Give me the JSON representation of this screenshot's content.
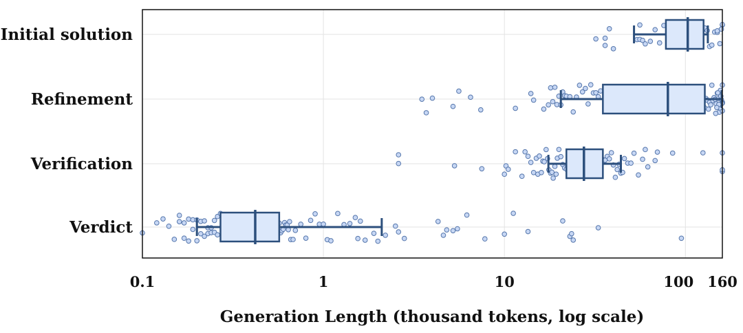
{
  "chart_data": {
    "type": "box",
    "orientation": "horizontal",
    "xlabel": "Generation Length (thousand tokens, log scale)",
    "xscale": "log",
    "xlim": [
      0.1,
      160
    ],
    "xticks": [
      0.1,
      1,
      10,
      100,
      160
    ],
    "xtick_labels": [
      "0.1",
      "1",
      "10",
      "100",
      "160"
    ],
    "grid": true,
    "colors": {
      "box_fill": "#dce8fb",
      "box_edge": "#2c4f7c",
      "point_fill": "#c7d7f4",
      "point_edge": "#5576ab",
      "grid": "#e3e3e3"
    },
    "categories": [
      "Initial solution",
      "Refinement",
      "Verification",
      "Verdict"
    ],
    "boxes": [
      {
        "name": "Initial solution",
        "whisker_low": 52,
        "q1": 78,
        "median": 103,
        "q3": 126,
        "whisker_high": 133
      },
      {
        "name": "Refinement",
        "whisker_low": 20.5,
        "q1": 35,
        "median": 80,
        "q3": 128,
        "whisker_high": 160
      },
      {
        "name": "Verification",
        "whisker_low": 17.5,
        "q1": 22,
        "median": 27.5,
        "q3": 35,
        "whisker_high": 44
      },
      {
        "name": "Verdict",
        "whisker_low": 0.2,
        "q1": 0.27,
        "median": 0.42,
        "q3": 0.57,
        "whisker_high": 2.1
      }
    ],
    "points": [
      {
        "name": "Initial solution",
        "values": [
          32,
          38,
          36,
          40,
          54,
          56,
          56,
          36,
          58,
          60,
          64,
          68,
          72,
          76,
          80,
          84,
          88,
          92,
          96,
          100,
          106,
          112,
          118,
          124,
          128,
          132,
          136,
          140,
          145,
          150,
          155,
          160,
          160,
          158,
          150
        ]
      },
      {
        "name": "Refinement",
        "values": [
          3.5,
          3.7,
          4.0,
          5.2,
          5.6,
          6.5,
          7.4,
          11.5,
          14,
          14.5,
          16.5,
          17.5,
          18,
          18.5,
          19,
          19.5,
          20,
          20.5,
          21,
          21.5,
          22,
          23,
          24,
          25,
          26,
          27,
          28,
          29,
          30,
          31,
          32,
          33,
          34,
          128,
          130,
          132,
          134,
          136,
          138,
          140,
          142,
          144,
          146,
          148,
          150,
          152,
          154,
          156,
          158,
          160,
          160,
          160,
          160,
          159,
          157,
          155,
          153,
          151,
          149,
          147
        ]
      },
      {
        "name": "Verification",
        "values": [
          2.6,
          2.6,
          5.3,
          7.5,
          10,
          10.2,
          10.5,
          11.5,
          12.5,
          13,
          13.5,
          14,
          14.5,
          15,
          15.3,
          15.6,
          16,
          16.3,
          16.6,
          17,
          17.3,
          17.6,
          18,
          18.3,
          18.6,
          19,
          19.3,
          19.6,
          20,
          20.5,
          21,
          21.5,
          22,
          23,
          24,
          25,
          26,
          27,
          28,
          29,
          30,
          31,
          32,
          33,
          34,
          35,
          36,
          37,
          38,
          39,
          40,
          41,
          42,
          43,
          44,
          45,
          46,
          48,
          50,
          52,
          55,
          58,
          60,
          62,
          68,
          70,
          85,
          125,
          160,
          160,
          160
        ]
      },
      {
        "name": "Verdict",
        "values": [
          0.1,
          0.12,
          0.13,
          0.14,
          0.15,
          0.16,
          0.16,
          0.17,
          0.17,
          0.18,
          0.18,
          0.19,
          0.19,
          0.2,
          0.2,
          0.21,
          0.21,
          0.22,
          0.22,
          0.23,
          0.23,
          0.24,
          0.24,
          0.25,
          0.25,
          0.26,
          0.26,
          0.27,
          0.28,
          0.29,
          0.3,
          0.57,
          0.58,
          0.59,
          0.6,
          0.61,
          0.62,
          0.63,
          0.64,
          0.65,
          0.66,
          0.68,
          0.7,
          0.75,
          0.8,
          0.85,
          0.9,
          0.95,
          1.0,
          1.05,
          1.1,
          1.2,
          1.3,
          1.4,
          1.5,
          1.55,
          1.6,
          1.7,
          1.9,
          2.0,
          2.2,
          2.5,
          2.6,
          2.8,
          4.3,
          4.6,
          4.8,
          5.2,
          5.5,
          6.2,
          7.8,
          10,
          11.2,
          13.5,
          21,
          23,
          23.5,
          24,
          33,
          95
        ]
      }
    ]
  }
}
